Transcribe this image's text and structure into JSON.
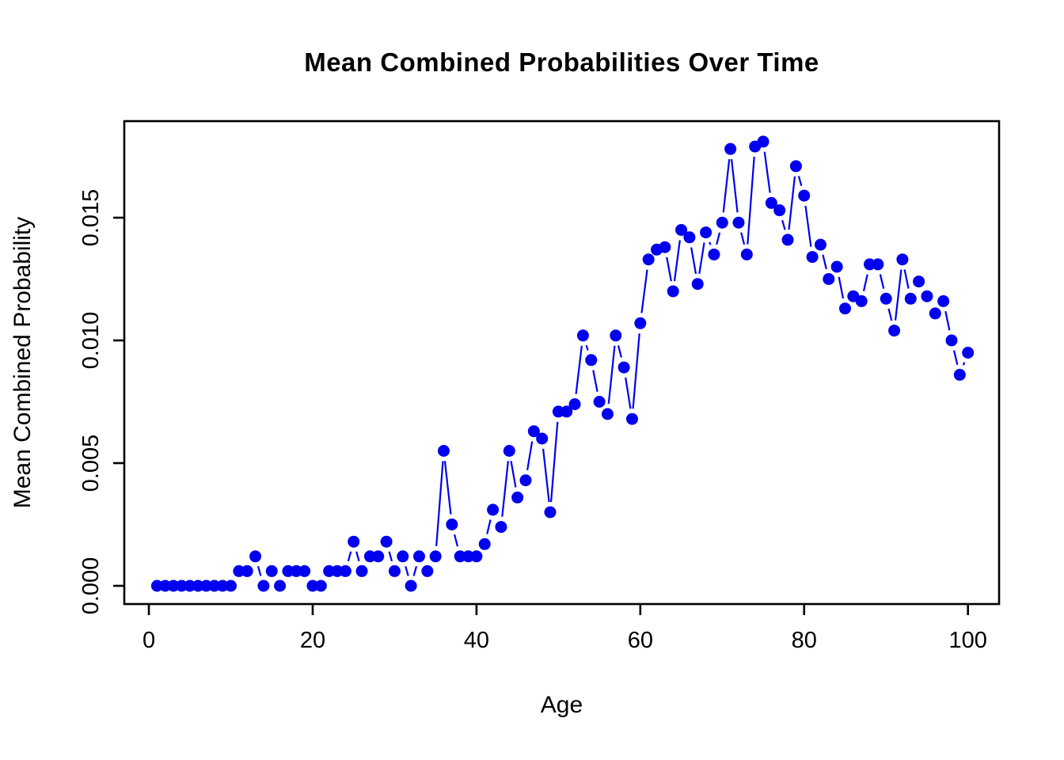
{
  "chart_data": {
    "type": "line",
    "title": "Mean Combined Probabilities Over Time",
    "xlabel": "Age",
    "ylabel": "Mean Combined Probability",
    "series_name": "mean combined probability",
    "series_color": "#0000ee",
    "point_style": "filled-circle",
    "line_style": "segments-with-gaps-at-points (R type='b')",
    "grid": false,
    "legend": null,
    "xticks": [
      0,
      20,
      40,
      60,
      80,
      100
    ],
    "ytick_values": [
      0.0,
      0.005,
      0.01,
      0.015
    ],
    "ytick_labels": [
      "0.000",
      "0.005",
      "0.010",
      "0.015"
    ],
    "xlim": [
      -3.0,
      103.8
    ],
    "ylim": [
      -0.000742,
      0.018935
    ],
    "x": [
      1,
      2,
      3,
      4,
      5,
      6,
      7,
      8,
      9,
      10,
      11,
      12,
      13,
      14,
      15,
      16,
      17,
      18,
      19,
      20,
      21,
      22,
      23,
      24,
      25,
      26,
      27,
      28,
      29,
      30,
      31,
      32,
      33,
      34,
      35,
      36,
      37,
      38,
      39,
      40,
      41,
      42,
      43,
      44,
      45,
      46,
      47,
      48,
      49,
      50,
      51,
      52,
      53,
      54,
      55,
      56,
      57,
      58,
      59,
      60,
      61,
      62,
      63,
      64,
      65,
      66,
      67,
      68,
      69,
      70,
      71,
      72,
      73,
      74,
      75,
      76,
      77,
      78,
      79,
      80,
      81,
      82,
      83,
      84,
      85,
      86,
      87,
      88,
      89,
      90,
      91,
      92,
      93,
      94,
      95,
      96,
      97,
      98,
      99,
      100
    ],
    "y": [
      0.0,
      0.0,
      0.0,
      0.0,
      0.0,
      0.0,
      0.0,
      0.0,
      0.0,
      0.0,
      0.0006,
      0.0006,
      0.0012,
      0.0,
      0.0006,
      0.0,
      0.0006,
      0.0006,
      0.0006,
      0.0,
      0.0,
      0.0006,
      0.0006,
      0.0006,
      0.0018,
      0.0006,
      0.0012,
      0.0012,
      0.0018,
      0.0006,
      0.0012,
      0.0,
      0.0012,
      0.0006,
      0.0012,
      0.0055,
      0.0025,
      0.0012,
      0.0012,
      0.0012,
      0.0017,
      0.0031,
      0.0024,
      0.0055,
      0.0036,
      0.0043,
      0.0063,
      0.006,
      0.003,
      0.0071,
      0.0071,
      0.0074,
      0.0102,
      0.0092,
      0.0075,
      0.007,
      0.0102,
      0.0089,
      0.0068,
      0.0107,
      0.0133,
      0.0137,
      0.0138,
      0.012,
      0.0145,
      0.0142,
      0.0123,
      0.0144,
      0.0135,
      0.0148,
      0.0178,
      0.0148,
      0.0135,
      0.0179,
      0.0181,
      0.0156,
      0.0153,
      0.0141,
      0.0171,
      0.0159,
      0.0134,
      0.0139,
      0.0125,
      0.013,
      0.0113,
      0.0118,
      0.0116,
      0.0131,
      0.0131,
      0.0117,
      0.0104,
      0.0133,
      0.0117,
      0.0124,
      0.0118,
      0.0111,
      0.0116,
      0.01,
      0.0086,
      0.0095
    ]
  }
}
